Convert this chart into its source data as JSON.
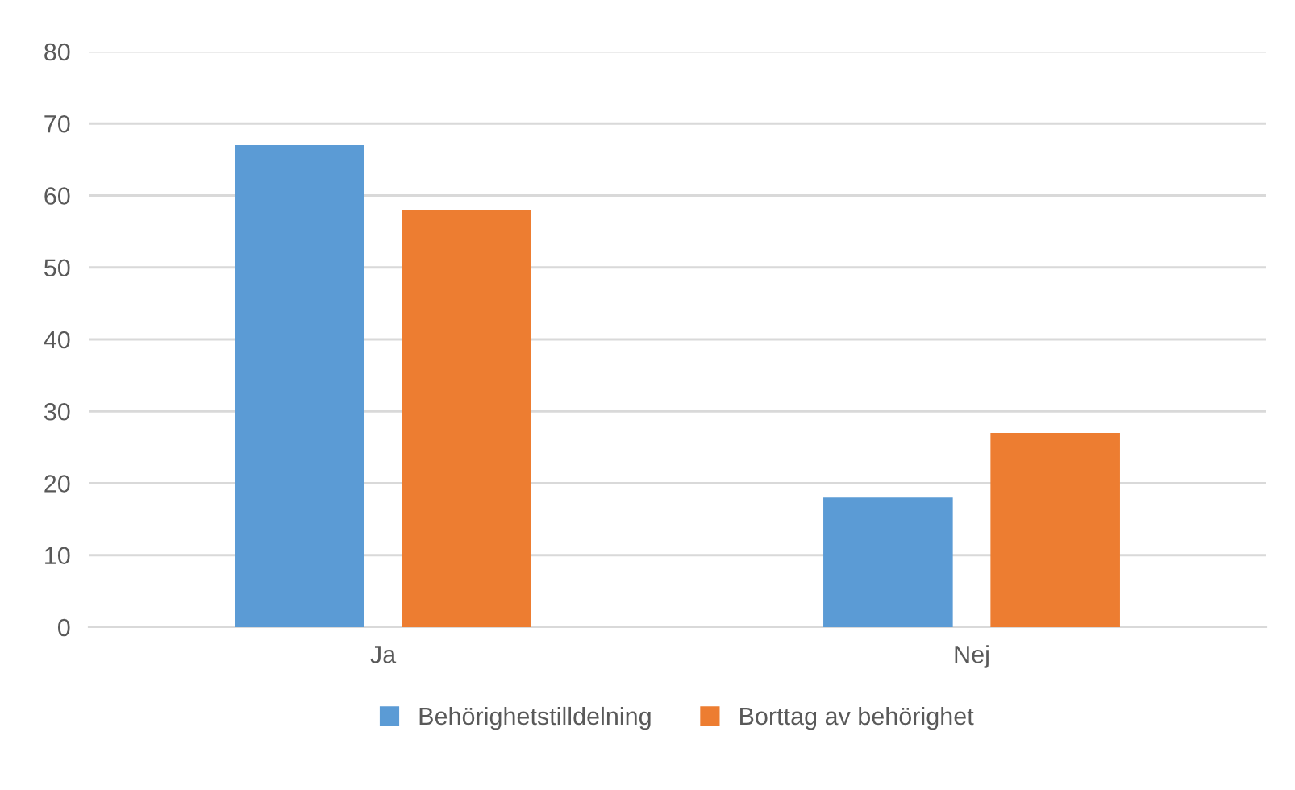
{
  "chart_data": {
    "type": "bar",
    "categories": [
      "Ja",
      "Nej"
    ],
    "series": [
      {
        "name": "Behörighetstilldelning",
        "color": "#5b9bd5",
        "values": [
          67,
          18
        ]
      },
      {
        "name": "Borttag av behörighet",
        "color": "#ed7d31",
        "values": [
          58,
          27
        ]
      }
    ],
    "ylim": [
      0,
      80
    ],
    "yticks": [
      0,
      10,
      20,
      30,
      40,
      50,
      60,
      70,
      80
    ],
    "grid": "y",
    "legend": "bottom"
  }
}
